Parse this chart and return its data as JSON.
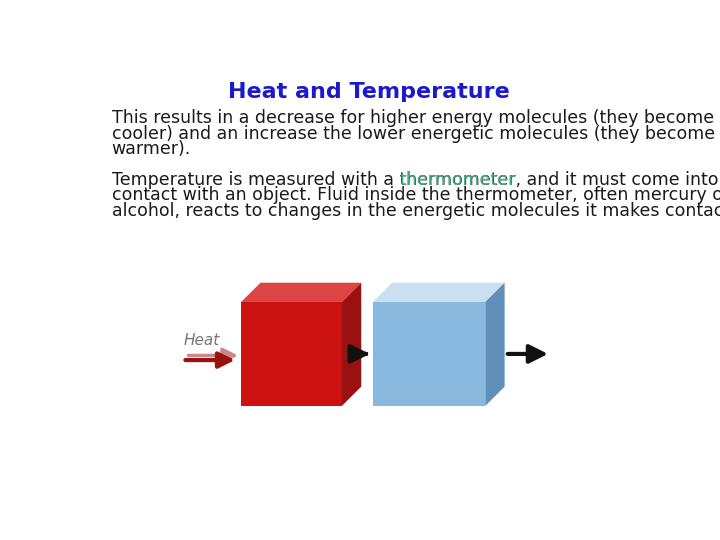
{
  "title": "Heat and Temperature",
  "title_color": "#1a1acc",
  "title_fontsize": 16,
  "para1_line1": "This results in a decrease for higher energy molecules (they become",
  "para1_line2": "cooler) and an increase the lower energetic molecules (they become",
  "para1_line3": "warmer).",
  "para2_before": "Temperature is measured with a ",
  "para2_link": "thermometer",
  "para2_link_color": "#4aaa88",
  "para2_rest_line1": ", and it must come into",
  "para2_line2": "contact with an object. Fluid inside the thermometer, often mercury or",
  "para2_line3": "alcohol, reacts to changes in the energetic molecules it makes contact with.",
  "text_fontsize": 12.5,
  "text_color": "#1a1a1a",
  "bg_color": "#ffffff",
  "red_box_face": "#cc1111",
  "red_box_top": "#dd4444",
  "red_box_side": "#991111",
  "blue_box_face": "#88b8dd",
  "blue_box_top": "#c8e0f0",
  "blue_box_side": "#6090b8",
  "arrow_color": "#111111",
  "heat_arrow_color": "#991111",
  "heat_shadow_color": "#cc8888",
  "heat_label": "Heat",
  "heat_label_color": "#777777"
}
